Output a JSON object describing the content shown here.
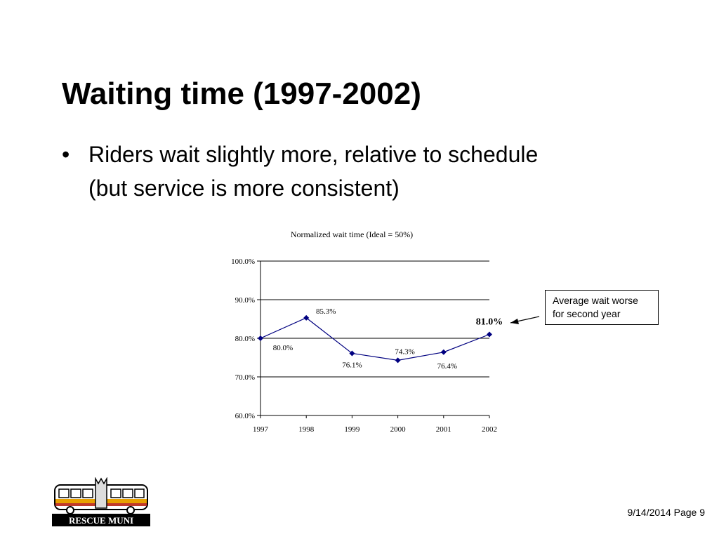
{
  "slide": {
    "title": "Waiting time (1997-2002)",
    "bullet_marker": "•",
    "bullet_lines": [
      "Riders wait slightly more, relative to schedule",
      "(but service is more consistent)"
    ]
  },
  "chart_data": {
    "type": "line",
    "title": "Normalized wait time (Ideal = 50%)",
    "xlabel": "",
    "ylabel": "",
    "categories": [
      "1997",
      "1998",
      "1999",
      "2000",
      "2001",
      "2002"
    ],
    "series": [
      {
        "values": [
          80.0,
          85.3,
          76.1,
          74.3,
          76.4,
          81.0
        ],
        "color": "#000080"
      }
    ],
    "data_labels": [
      "80.0%",
      "85.3%",
      "76.1%",
      "74.3%",
      "76.4%",
      "81.0%"
    ],
    "y_ticks": [
      60,
      70,
      80,
      90,
      100
    ],
    "y_tick_labels": [
      "60.0%",
      "70.0%",
      "80.0%",
      "90.0%",
      "100.0%"
    ],
    "ylim": [
      60,
      100
    ],
    "grid": true,
    "legend": false
  },
  "callout": {
    "lines": [
      "Average wait worse",
      "for second year"
    ]
  },
  "logo": {
    "text": "RESCUE MUNI"
  },
  "footer": {
    "text": "9/14/2014 Page 9"
  }
}
